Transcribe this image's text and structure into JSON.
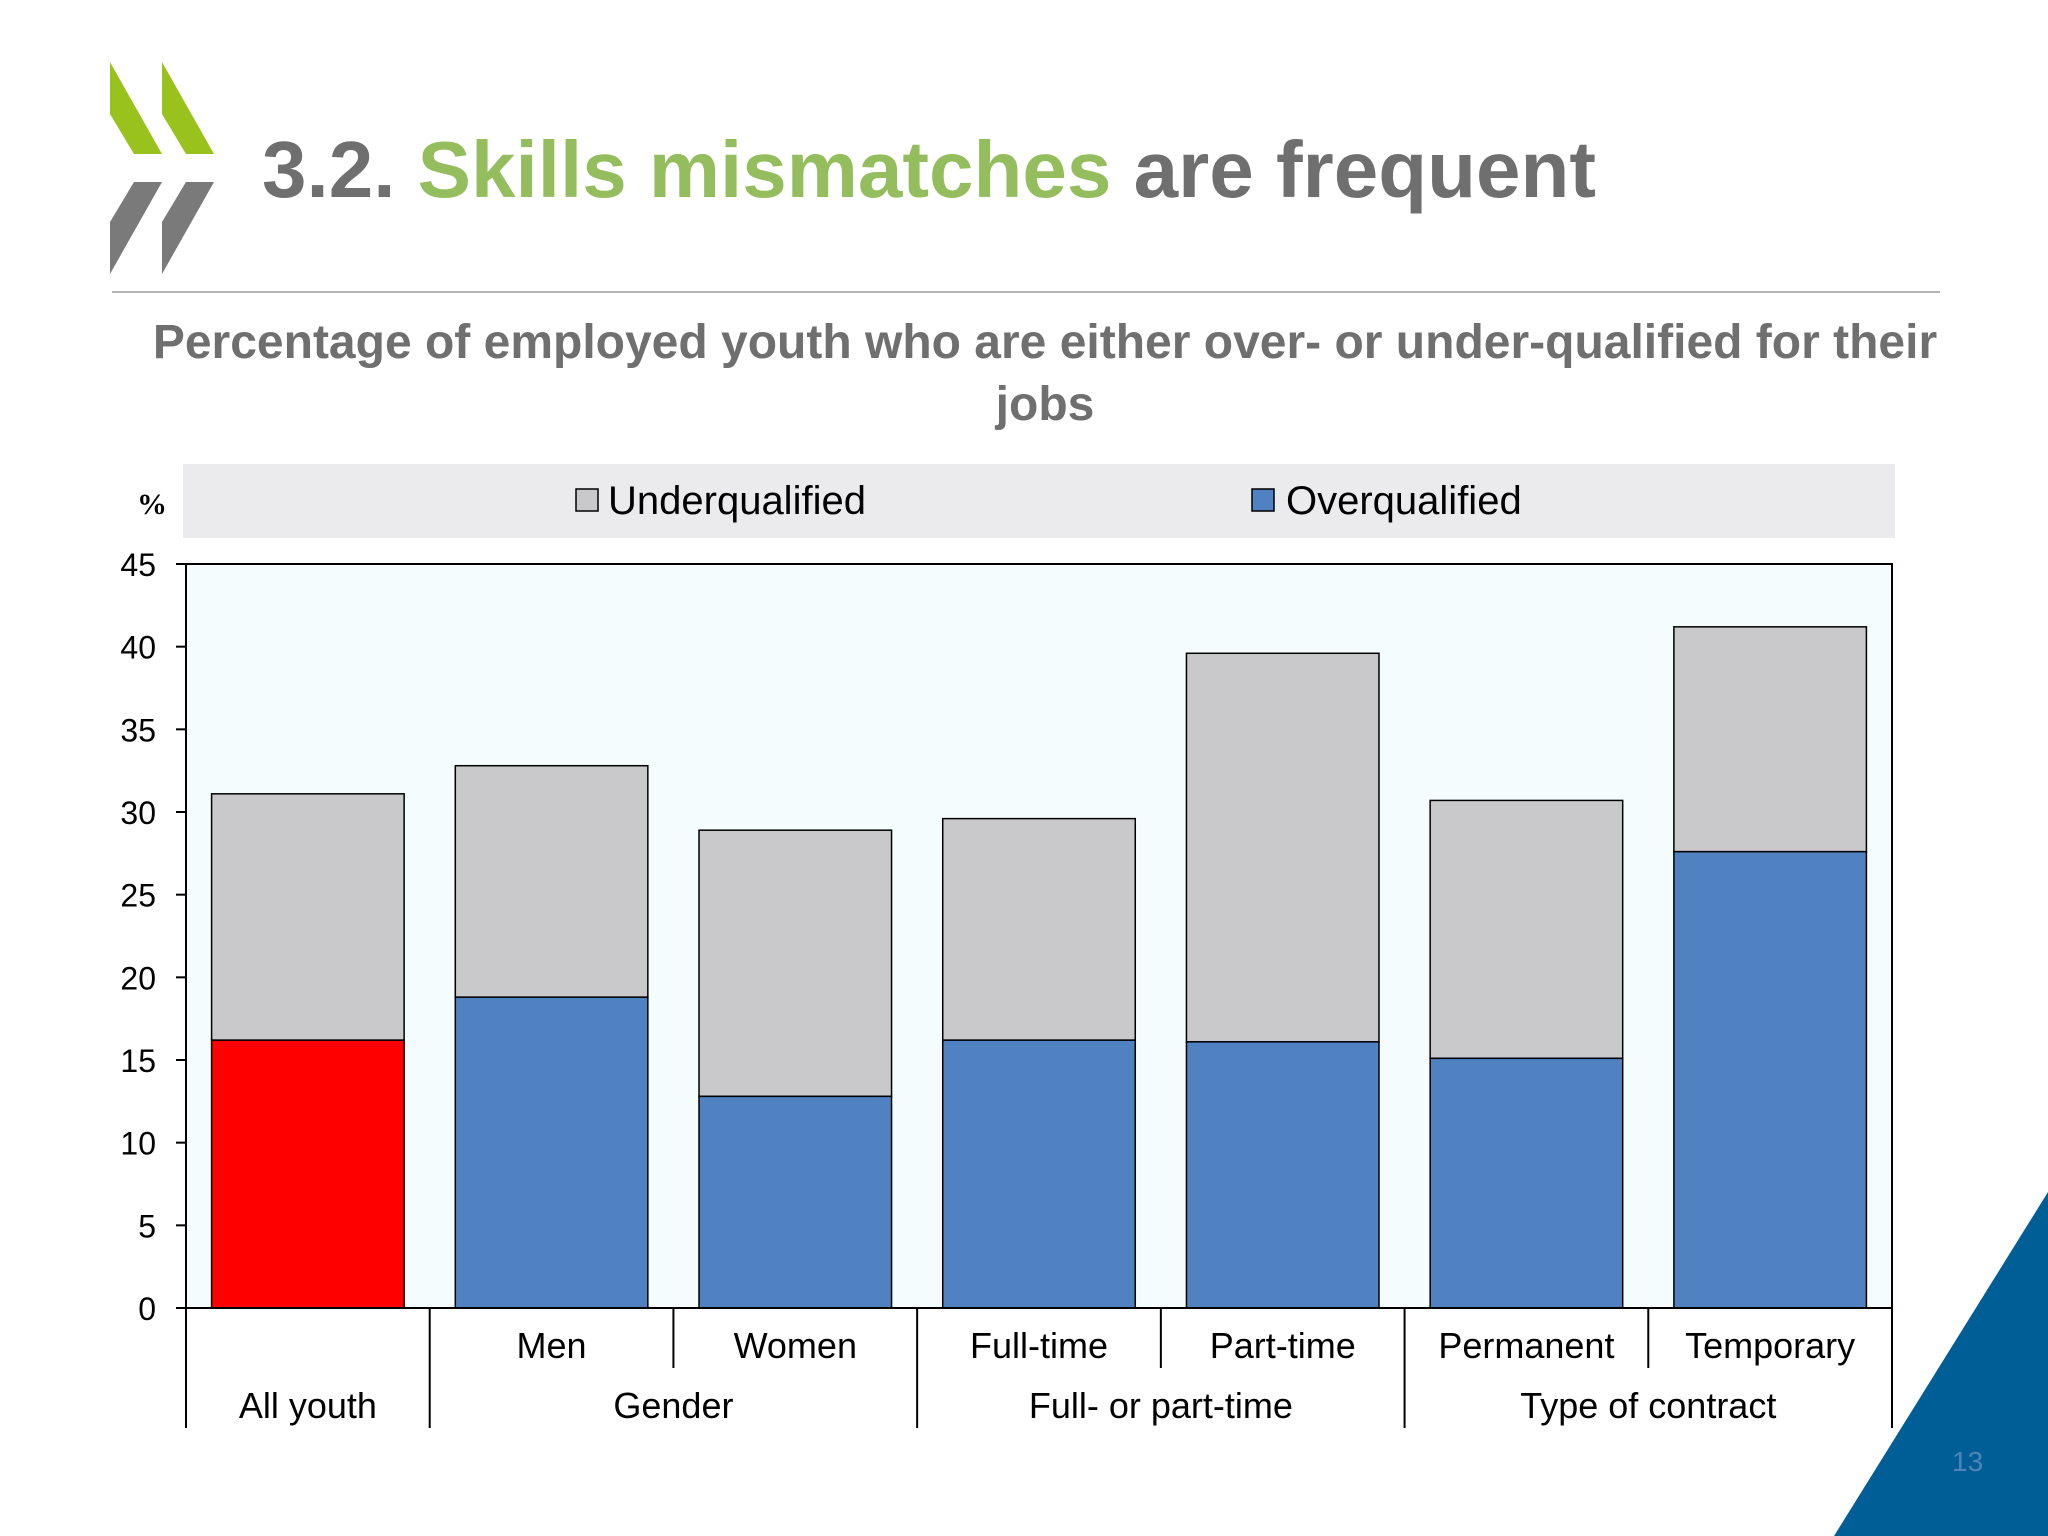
{
  "slide": {
    "title_number": "3.2.",
    "title_accent": "Skills mismatches",
    "title_rest": "are frequent",
    "page_number": "13"
  },
  "colors": {
    "title_gray": "#6f6f6f",
    "accent_green": "#94bd5e",
    "underqualified": "#c9c9cb",
    "overqualified": "#5082c1",
    "highlight": "#ff0000",
    "plot_background": "#f4fcfe",
    "legend_background": "#ebebed",
    "corner_blue": "#005e96"
  },
  "icons": {
    "logo": "oecd-chevron-logo-icon"
  },
  "chart_data": {
    "type": "bar",
    "stacked": true,
    "title": "Percentage of employed youth who are either over- or under-qualified for their jobs",
    "ylabel": "%",
    "xlabel": "",
    "ylim": [
      0,
      45
    ],
    "yticks": [
      "0",
      "5",
      "10",
      "15",
      "20",
      "25",
      "30",
      "35",
      "40",
      "45"
    ],
    "grid": false,
    "legend_position": "top",
    "categories": [
      "",
      "Men",
      "Women",
      "Full-time",
      "Part-time",
      "Permanent",
      "Temporary"
    ],
    "groups": [
      {
        "label": "All youth",
        "categories": [
          ""
        ]
      },
      {
        "label": "Gender",
        "categories": [
          "Men",
          "Women"
        ]
      },
      {
        "label": "Full- or part-time",
        "categories": [
          "Full-time",
          "Part-time"
        ]
      },
      {
        "label": "Type of contract",
        "categories": [
          "Permanent",
          "Temporary"
        ]
      }
    ],
    "series": [
      {
        "name": "Overqualified",
        "values": [
          16.2,
          18.8,
          12.8,
          16.2,
          16.1,
          15.1,
          27.6
        ]
      },
      {
        "name": "Underqualified",
        "values": [
          14.9,
          14.0,
          16.1,
          13.4,
          23.5,
          15.6,
          13.6
        ]
      }
    ],
    "legend": [
      "Underqualified",
      "Overqualified"
    ],
    "highlighted_category_index": 0
  }
}
